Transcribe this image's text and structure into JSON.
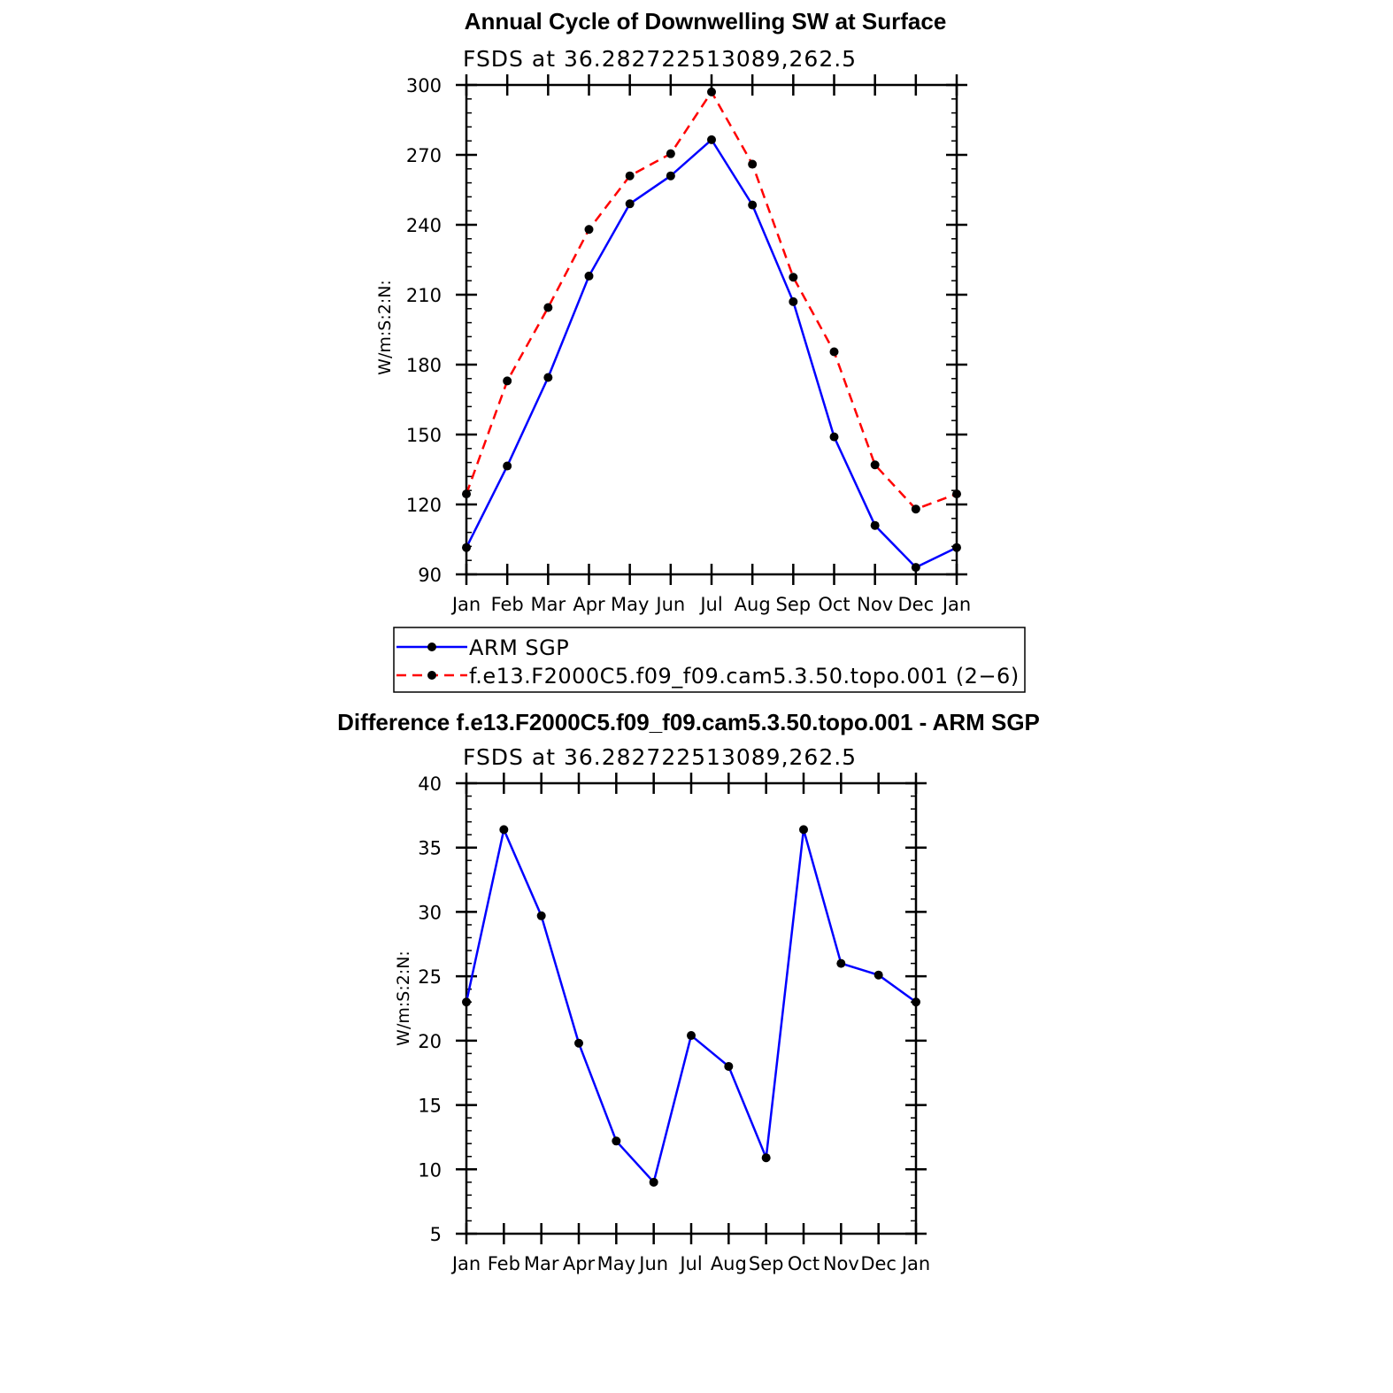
{
  "chart_data": [
    {
      "type": "line",
      "title": "Annual Cycle of Downwelling SW at Surface",
      "subtitle": "FSDS at 36.282722513089,262.5",
      "xlabel": "",
      "ylabel": "W/m:S:2:N:",
      "categories": [
        "Jan",
        "Feb",
        "Mar",
        "Apr",
        "May",
        "Jun",
        "Jul",
        "Aug",
        "Sep",
        "Oct",
        "Nov",
        "Dec",
        "Jan"
      ],
      "ylim": [
        90,
        300
      ],
      "yticks": [
        90,
        120,
        150,
        180,
        210,
        240,
        270,
        300
      ],
      "series": [
        {
          "name": "ARM SGP",
          "color": "#0000ff",
          "dash": "solid",
          "values": [
            101.5,
            136.5,
            174.5,
            218,
            249,
            261,
            276.5,
            248.5,
            207,
            149,
            111,
            93,
            101.5
          ]
        },
        {
          "name": "f.e13.F2000C5.f09_f09.cam5.3.50.topo.001 (2−6)",
          "color": "#ff0000",
          "dash": "dashed",
          "values": [
            124.5,
            173,
            204.5,
            238,
            261,
            270.5,
            297,
            266,
            217.5,
            185.5,
            137,
            118,
            124.5
          ]
        }
      ],
      "legend": {
        "position": "below"
      }
    },
    {
      "type": "line",
      "title": "Difference f.e13.F2000C5.f09_f09.cam5.3.50.topo.001 - ARM SGP",
      "subtitle": "FSDS at 36.282722513089,262.5",
      "xlabel": "",
      "ylabel": "W/m:S:2:N:",
      "categories": [
        "Jan",
        "Feb",
        "Mar",
        "Apr",
        "May",
        "Jun",
        "Jul",
        "Aug",
        "Sep",
        "Oct",
        "Nov",
        "Dec",
        "Jan"
      ],
      "ylim": [
        5,
        40
      ],
      "yticks": [
        5,
        10,
        15,
        20,
        25,
        30,
        35,
        40
      ],
      "series": [
        {
          "name": "Difference",
          "color": "#0000ff",
          "dash": "solid",
          "values": [
            23,
            36.4,
            29.7,
            19.8,
            12.2,
            9,
            20.4,
            18,
            10.9,
            36.4,
            26,
            25.1,
            23
          ]
        }
      ]
    }
  ]
}
